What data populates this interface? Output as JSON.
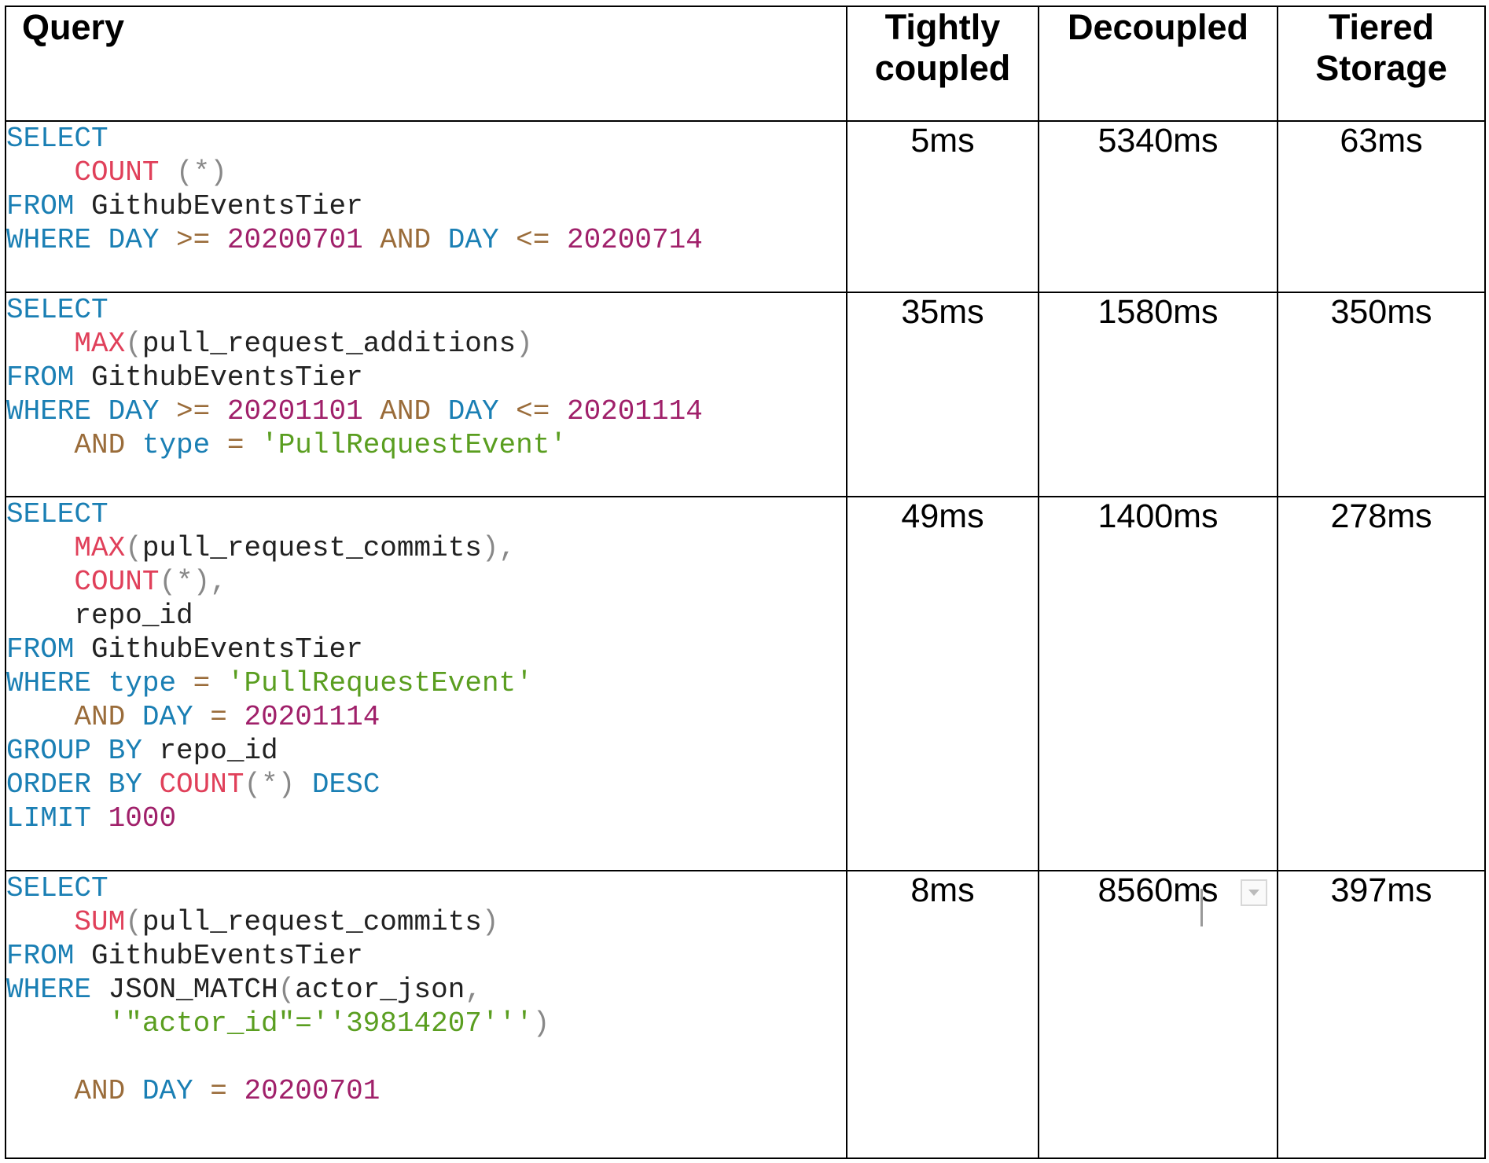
{
  "table": {
    "headers": {
      "query": "Query",
      "tightly": "Tightly coupled",
      "decoupled": "Decoupled",
      "tiered": "Tiered Storage"
    },
    "rows": [
      {
        "tightly": "5ms",
        "decoupled": "5340ms",
        "tiered": "63ms",
        "lines": [
          [
            {
              "t": "SELECT",
              "c": "kw"
            }
          ],
          [
            {
              "t": "    "
            },
            {
              "t": "COUNT",
              "c": "fn"
            },
            {
              "t": " (*)",
              "c": "punc"
            }
          ],
          [
            {
              "t": "FROM",
              "c": "kw"
            },
            {
              "t": " GithubEventsTier",
              "c": "plain"
            }
          ],
          [
            {
              "t": "WHERE",
              "c": "kw"
            },
            {
              "t": " "
            },
            {
              "t": "DAY",
              "c": "kw"
            },
            {
              "t": " >=",
              "c": "op"
            },
            {
              "t": " 20200701",
              "c": "num"
            },
            {
              "t": " AND",
              "c": "op"
            },
            {
              "t": " "
            },
            {
              "t": "DAY",
              "c": "kw"
            },
            {
              "t": " <=",
              "c": "op"
            },
            {
              "t": " 20200714",
              "c": "num"
            }
          ]
        ]
      },
      {
        "tightly": "35ms",
        "decoupled": "1580ms",
        "tiered": "350ms",
        "lines": [
          [
            {
              "t": "SELECT",
              "c": "kw"
            }
          ],
          [
            {
              "t": "    "
            },
            {
              "t": "MAX",
              "c": "fn"
            },
            {
              "t": "(",
              "c": "punc"
            },
            {
              "t": "pull_request_additions",
              "c": "plain"
            },
            {
              "t": ")",
              "c": "punc"
            }
          ],
          [
            {
              "t": "FROM",
              "c": "kw"
            },
            {
              "t": " GithubEventsTier",
              "c": "plain"
            }
          ],
          [
            {
              "t": "WHERE",
              "c": "kw"
            },
            {
              "t": " "
            },
            {
              "t": "DAY",
              "c": "kw"
            },
            {
              "t": " >=",
              "c": "op"
            },
            {
              "t": " 20201101",
              "c": "num"
            },
            {
              "t": " AND",
              "c": "op"
            },
            {
              "t": " "
            },
            {
              "t": "DAY",
              "c": "kw"
            },
            {
              "t": " <=",
              "c": "op"
            },
            {
              "t": " 20201114",
              "c": "num"
            }
          ],
          [
            {
              "t": "    "
            },
            {
              "t": "AND",
              "c": "op"
            },
            {
              "t": " "
            },
            {
              "t": "type",
              "c": "kw"
            },
            {
              "t": " =",
              "c": "op"
            },
            {
              "t": " 'PullRequestEvent'",
              "c": "str"
            }
          ]
        ]
      },
      {
        "tightly": "49ms",
        "decoupled": "1400ms",
        "tiered": "278ms",
        "lines": [
          [
            {
              "t": "SELECT",
              "c": "kw"
            }
          ],
          [
            {
              "t": "    "
            },
            {
              "t": "MAX",
              "c": "fn"
            },
            {
              "t": "(",
              "c": "punc"
            },
            {
              "t": "pull_request_commits",
              "c": "plain"
            },
            {
              "t": "),",
              "c": "punc"
            }
          ],
          [
            {
              "t": "    "
            },
            {
              "t": "COUNT",
              "c": "fn"
            },
            {
              "t": "(*),",
              "c": "punc"
            }
          ],
          [
            {
              "t": "    repo_id",
              "c": "plain"
            }
          ],
          [
            {
              "t": "FROM",
              "c": "kw"
            },
            {
              "t": " GithubEventsTier",
              "c": "plain"
            }
          ],
          [
            {
              "t": "WHERE",
              "c": "kw"
            },
            {
              "t": " "
            },
            {
              "t": "type",
              "c": "kw"
            },
            {
              "t": " =",
              "c": "op"
            },
            {
              "t": " 'PullRequestEvent'",
              "c": "str"
            }
          ],
          [
            {
              "t": "    "
            },
            {
              "t": "AND",
              "c": "op"
            },
            {
              "t": " "
            },
            {
              "t": "DAY",
              "c": "kw"
            },
            {
              "t": " =",
              "c": "op"
            },
            {
              "t": " 20201114",
              "c": "num"
            }
          ],
          [
            {
              "t": "GROUP BY",
              "c": "kw"
            },
            {
              "t": " repo_id",
              "c": "plain"
            }
          ],
          [
            {
              "t": "ORDER BY",
              "c": "kw"
            },
            {
              "t": " "
            },
            {
              "t": "COUNT",
              "c": "fn"
            },
            {
              "t": "(*)",
              "c": "punc"
            },
            {
              "t": " DESC",
              "c": "kw"
            }
          ],
          [
            {
              "t": "LIMIT",
              "c": "kw"
            },
            {
              "t": " 1000",
              "c": "num"
            }
          ]
        ]
      },
      {
        "tightly": "8ms",
        "decoupled": "8560ms",
        "tiered": "397ms",
        "lines": [
          [
            {
              "t": "SELECT",
              "c": "kw"
            }
          ],
          [
            {
              "t": "    "
            },
            {
              "t": "SUM",
              "c": "fn"
            },
            {
              "t": "(",
              "c": "punc"
            },
            {
              "t": "pull_request_commits",
              "c": "plain"
            },
            {
              "t": ")",
              "c": "punc"
            }
          ],
          [
            {
              "t": "FROM",
              "c": "kw"
            },
            {
              "t": " GithubEventsTier",
              "c": "plain"
            }
          ],
          [
            {
              "t": "WHERE",
              "c": "kw"
            },
            {
              "t": " JSON_MATCH",
              "c": "plain"
            },
            {
              "t": "(",
              "c": "punc"
            },
            {
              "t": "actor_json",
              "c": "plain"
            },
            {
              "t": ",",
              "c": "punc"
            }
          ],
          [
            {
              "t": "      "
            },
            {
              "t": "'\"actor_id\"=''39814207'''",
              "c": "str"
            },
            {
              "t": ")",
              "c": "punc"
            }
          ],
          [
            {
              "t": ""
            }
          ],
          [
            {
              "t": "    "
            },
            {
              "t": "AND",
              "c": "op"
            },
            {
              "t": " "
            },
            {
              "t": "DAY",
              "c": "kw"
            },
            {
              "t": " =",
              "c": "op"
            },
            {
              "t": " 20200701",
              "c": "num"
            }
          ]
        ]
      }
    ]
  }
}
